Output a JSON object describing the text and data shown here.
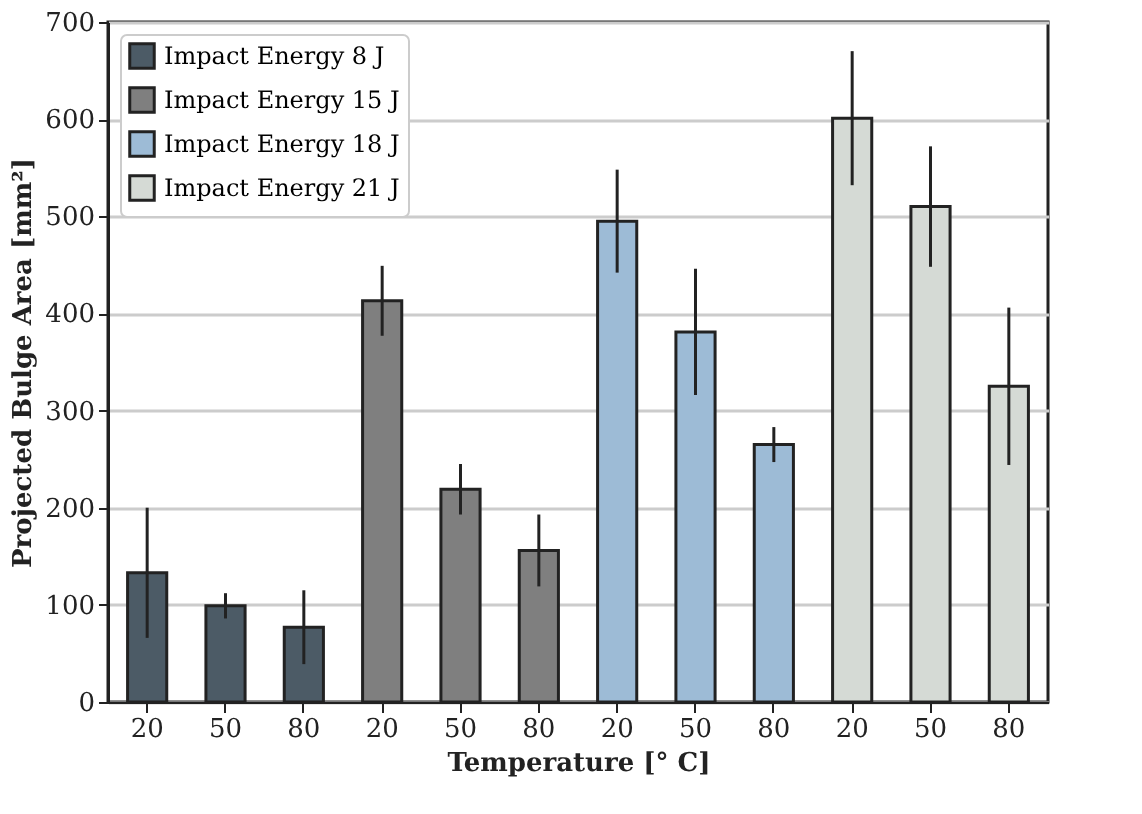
{
  "chart_data": {
    "type": "bar",
    "xlabel": "Temperature [° C]",
    "ylabel": "Projected Bulge Area [mm²]",
    "categories": [
      "20",
      "50",
      "80",
      "20",
      "50",
      "80",
      "20",
      "50",
      "80",
      "20",
      "50",
      "80"
    ],
    "series": [
      {
        "name": "Impact Energy 8 J",
        "color": "#4c5b66",
        "values": [
          133,
          99,
          77,
          null,
          null,
          null,
          null,
          null,
          null,
          null,
          null,
          null
        ],
        "errors": [
          67,
          13,
          38,
          null,
          null,
          null,
          null,
          null,
          null,
          null,
          null,
          null
        ]
      },
      {
        "name": "Impact Energy 15 J",
        "color": "#7f7f7f",
        "values": [
          null,
          null,
          null,
          413,
          219,
          156,
          null,
          null,
          null,
          null,
          null,
          null
        ],
        "errors": [
          null,
          null,
          null,
          36,
          26,
          37,
          null,
          null,
          null,
          null,
          null,
          null
        ]
      },
      {
        "name": "Impact Energy 18 J",
        "color": "#9dbbd6",
        "values": [
          null,
          null,
          null,
          null,
          null,
          null,
          495,
          381,
          265,
          null,
          null,
          null
        ],
        "errors": [
          null,
          null,
          null,
          null,
          null,
          null,
          53,
          65,
          18,
          null,
          null,
          null
        ]
      },
      {
        "name": "Impact Energy 21 J",
        "color": "#d5dad5",
        "values": [
          null,
          null,
          null,
          null,
          null,
          null,
          null,
          null,
          null,
          601,
          510,
          325
        ],
        "errors": [
          null,
          null,
          null,
          null,
          null,
          null,
          null,
          null,
          null,
          69,
          62,
          81
        ]
      }
    ],
    "ylim": [
      0,
      700
    ],
    "yticks": [
      0,
      100,
      200,
      300,
      400,
      500,
      600,
      700
    ],
    "grid": "y",
    "legend": "top left"
  }
}
